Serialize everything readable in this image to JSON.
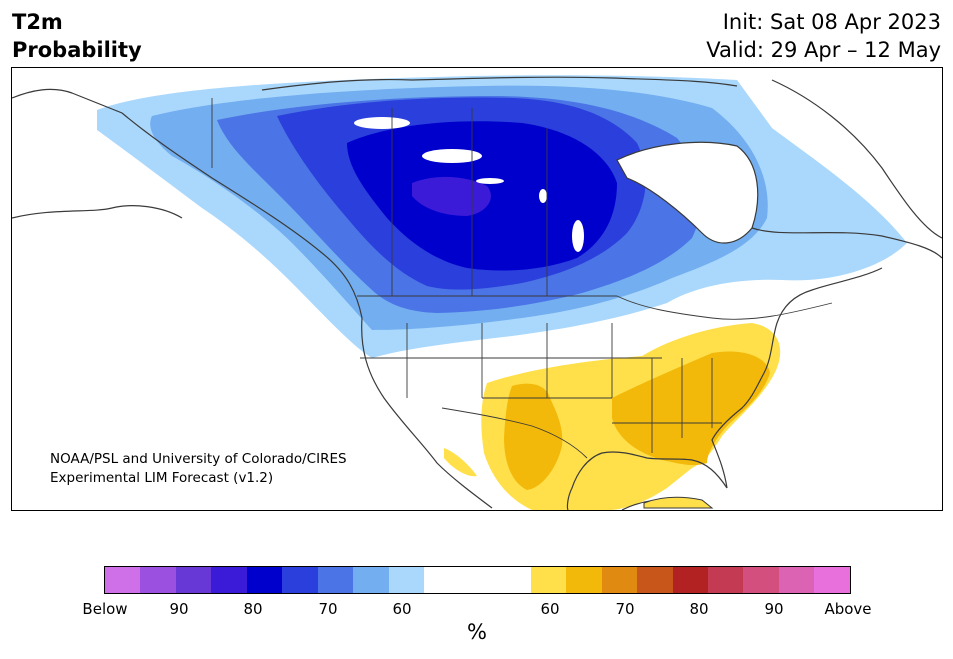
{
  "header": {
    "variable": "T2m",
    "quantity": "Probability",
    "init": "Init: Sat 08 Apr 2023",
    "valid": "Valid: 29 Apr – 12 May"
  },
  "map": {
    "credit_line1": "NOAA/PSL and University of Colorado/CIRES",
    "credit_line2": "Experimental LIM Forecast (v1.2)",
    "region": "North America"
  },
  "colorbar": {
    "unit": "%",
    "tick_labels": [
      "Below",
      "90",
      "80",
      "70",
      "60",
      "60",
      "70",
      "80",
      "90",
      "Above"
    ],
    "colors": {
      "below_95": "#d070e8",
      "below_90": "#9b50e0",
      "below_85": "#6838d6",
      "below_80": "#3b1ad8",
      "below_75": "#0000cd",
      "below_70": "#2a3fdc",
      "below_65": "#4b74e6",
      "below_60": "#72aef0",
      "below_55": "#aad8fc",
      "neutral": "#ffffff",
      "above_55": "#ffe04a",
      "above_60": "#f3b90a",
      "above_65": "#e08a12",
      "above_70": "#c85519",
      "above_75": "#b22222",
      "above_80": "#c43a52",
      "above_85": "#d24f7e",
      "above_90": "#dc62b4",
      "above_95": "#e870dc"
    }
  }
}
